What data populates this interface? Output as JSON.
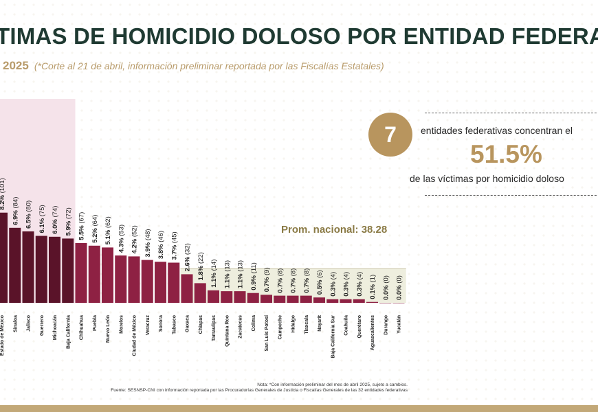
{
  "header": {
    "title": "TIMAS DE HOMICIDIO DOLOSO POR ENTIDAD FEDERATI",
    "year": "2025",
    "note": "(*Corte al 21 de abril, información preliminar reportada por las Fiscalías Estatales)"
  },
  "callout": {
    "number": "7",
    "line1": "entidades federativas concentran el",
    "percent": "51.5%",
    "line2": "de las víctimas por homicidio doloso"
  },
  "average": {
    "label": "Prom. nacional: 38.28",
    "value": 38.28
  },
  "footer": {
    "note": "Nota: *Con información preliminar del mes de abril 2025, sujeto a cambios.",
    "source": "Fuente: SESNSP-CNI con información reportada por las Procuradurías Generales de Justicia o Fiscalías Generales de las 32 entidades federativas"
  },
  "colors": {
    "highlight_bar": "#5a1329",
    "bar": "#8e2143",
    "highlight_bg": "#f5e3ea",
    "below_avg_bg": "#eeeede",
    "accent": "#b8955e"
  },
  "chart_data": {
    "type": "bar",
    "categories": [
      "Estado de México",
      "Sinaloa",
      "Jalisco",
      "Guerrero",
      "Michoacán",
      "Baja California",
      "Chihuahua",
      "Puebla",
      "Nuevo León",
      "Morelos",
      "Ciudad de México",
      "Veracruz",
      "Sonora",
      "Tabasco",
      "Oaxaca",
      "Chiapas",
      "Tamaulipas",
      "Quintana Roo",
      "Zacatecas",
      "Colima",
      "San Luis Potosí",
      "Campeche",
      "Hidalgo",
      "Tlaxcala",
      "Nayarit",
      "Baja California Sur",
      "Coahuila",
      "Querétaro",
      "Aguascalientes",
      "Durango",
      "Yucatán"
    ],
    "values": [
      101,
      84,
      80,
      75,
      74,
      72,
      67,
      64,
      62,
      53,
      52,
      48,
      46,
      45,
      32,
      22,
      14,
      13,
      13,
      11,
      9,
      8,
      8,
      8,
      6,
      4,
      4,
      4,
      1,
      0,
      0
    ],
    "labels": [
      "8.2% (101)",
      "6.9% (84)",
      "6.5% (80)",
      "6.1% (75)",
      "6.0% (74)",
      "5.9% (72)",
      "5.5% (67)",
      "5.2% (64)",
      "5.1% (62)",
      "4.3% (53)",
      "4.2% (52)",
      "3.9% (48)",
      "3.8% (46)",
      "3.7% (45)",
      "2.6% (32)",
      "1.8% (22)",
      "1.1% (14)",
      "1.1% (13)",
      "1.1% (13)",
      "0.9% (11)",
      "0.7% (9)",
      "0.7% (8)",
      "0.7% (8)",
      "0.7% (8)",
      "0.5% (6)",
      "0.3% (4)",
      "0.3% (4)",
      "0.3% (4)",
      "0.1% (1)",
      "0.0% (0)",
      "0.0% (0)"
    ],
    "highlighted_count": 6,
    "title": "",
    "xlabel": "",
    "ylabel": ""
  }
}
